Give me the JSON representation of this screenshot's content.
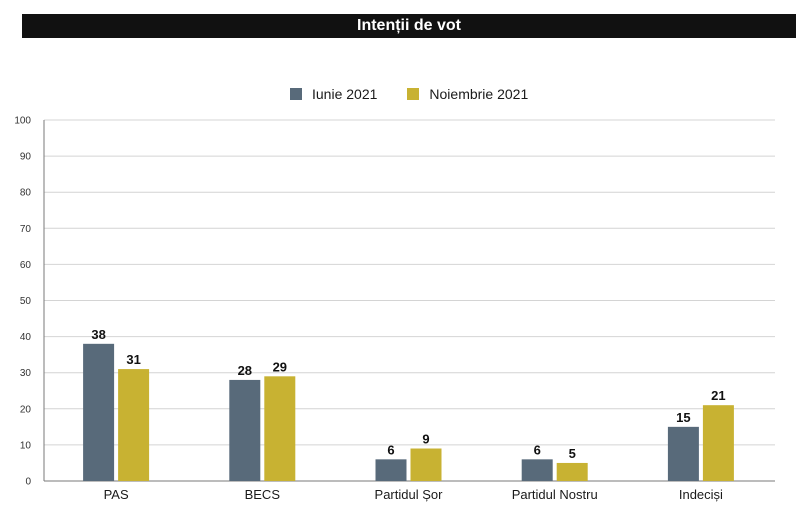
{
  "chart_data": {
    "type": "bar",
    "title": "Intenții de vot",
    "categories": [
      "PAS",
      "BECS",
      "Partidul Șor",
      "Partidul Nostru",
      "Indeciși"
    ],
    "series": [
      {
        "name": "Iunie 2021",
        "color": "#586a7a",
        "values": [
          38,
          28,
          6,
          6,
          15
        ]
      },
      {
        "name": "Noiembrie 2021",
        "color": "#c8b232",
        "values": [
          31,
          29,
          9,
          5,
          21
        ]
      }
    ],
    "ylim": [
      0,
      100
    ],
    "yticks": [
      0,
      10,
      20,
      30,
      40,
      50,
      60,
      70,
      80,
      90,
      100
    ],
    "grid": true,
    "legend_position": "top-center"
  }
}
